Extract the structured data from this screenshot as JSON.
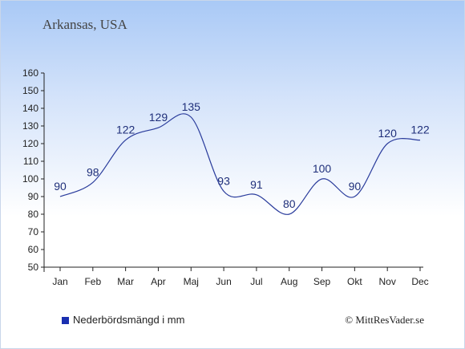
{
  "header": {
    "title": "Arkansas, USA"
  },
  "legend": {
    "label": "Nederbördsmängd i mm",
    "swatch_color": "#1a2fb0"
  },
  "credit": {
    "text": "© MittResVader.se"
  },
  "chart_data": {
    "type": "line",
    "title": "Arkansas, USA",
    "categories": [
      "Jan",
      "Feb",
      "Mar",
      "Apr",
      "Maj",
      "Jun",
      "Jul",
      "Aug",
      "Sep",
      "Okt",
      "Nov",
      "Dec"
    ],
    "series": [
      {
        "name": "Nederbördsmängd i mm",
        "values": [
          90,
          98,
          122,
          129,
          135,
          93,
          91,
          80,
          100,
          90,
          120,
          122
        ],
        "color": "#2a3c9c"
      }
    ],
    "ylim": [
      50,
      160
    ],
    "yticks": [
      50,
      60,
      70,
      80,
      90,
      100,
      110,
      120,
      130,
      140,
      150,
      160
    ],
    "grid": false,
    "legend_position": "bottom-left"
  }
}
